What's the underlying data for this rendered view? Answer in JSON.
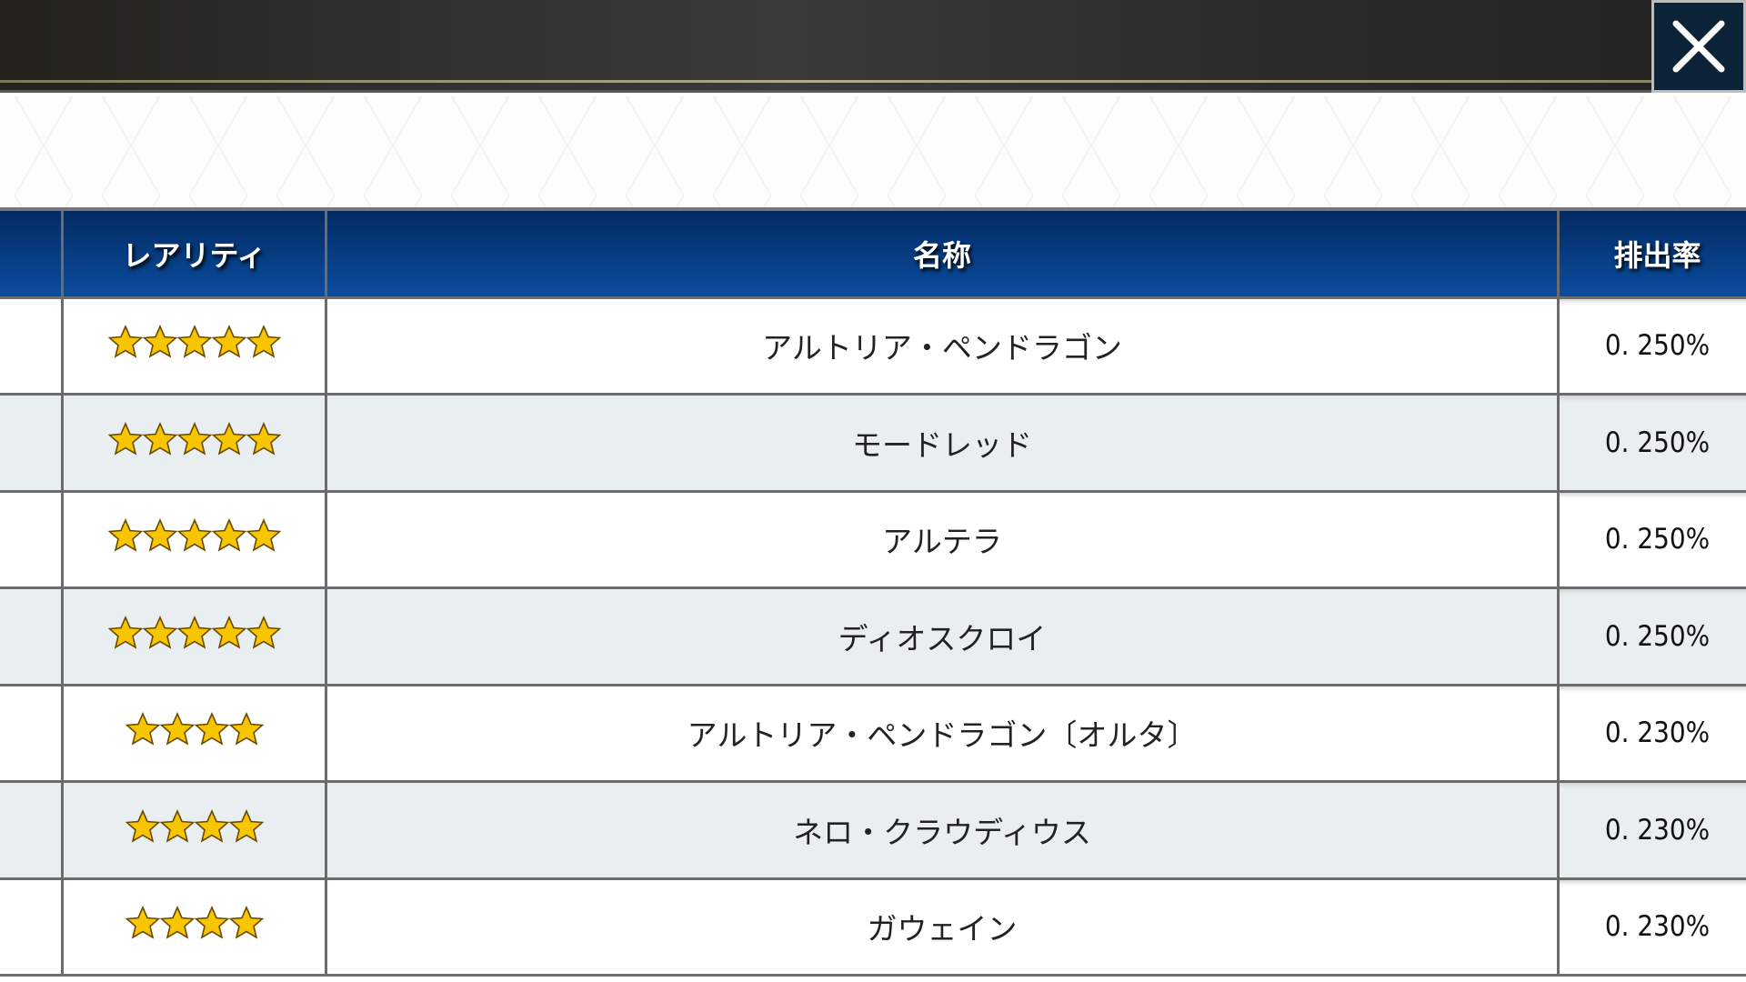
{
  "header": {
    "close_icon": "close-icon"
  },
  "table": {
    "columns": [
      "レアリティ",
      "名称",
      "排出率"
    ],
    "rows": [
      {
        "rarity": 5,
        "name": "アルトリア・ペンドラゴン",
        "rate": "0. 250%"
      },
      {
        "rarity": 5,
        "name": "モードレッド",
        "rate": "0. 250%"
      },
      {
        "rarity": 5,
        "name": "アルテラ",
        "rate": "0. 250%"
      },
      {
        "rarity": 5,
        "name": "ディオスクロイ",
        "rate": "0. 250%"
      },
      {
        "rarity": 4,
        "name": "アルトリア・ペンドラゴン〔オルタ〕",
        "rate": "0. 230%"
      },
      {
        "rarity": 4,
        "name": "ネロ・クラウディウス",
        "rate": "0. 230%"
      },
      {
        "rarity": 4,
        "name": "ガウェイン",
        "rate": "0. 230%"
      }
    ]
  },
  "colors": {
    "header_blue": "#0a4d9e",
    "star_gold": "#f7c600",
    "row_alt": "#e9eef1"
  }
}
